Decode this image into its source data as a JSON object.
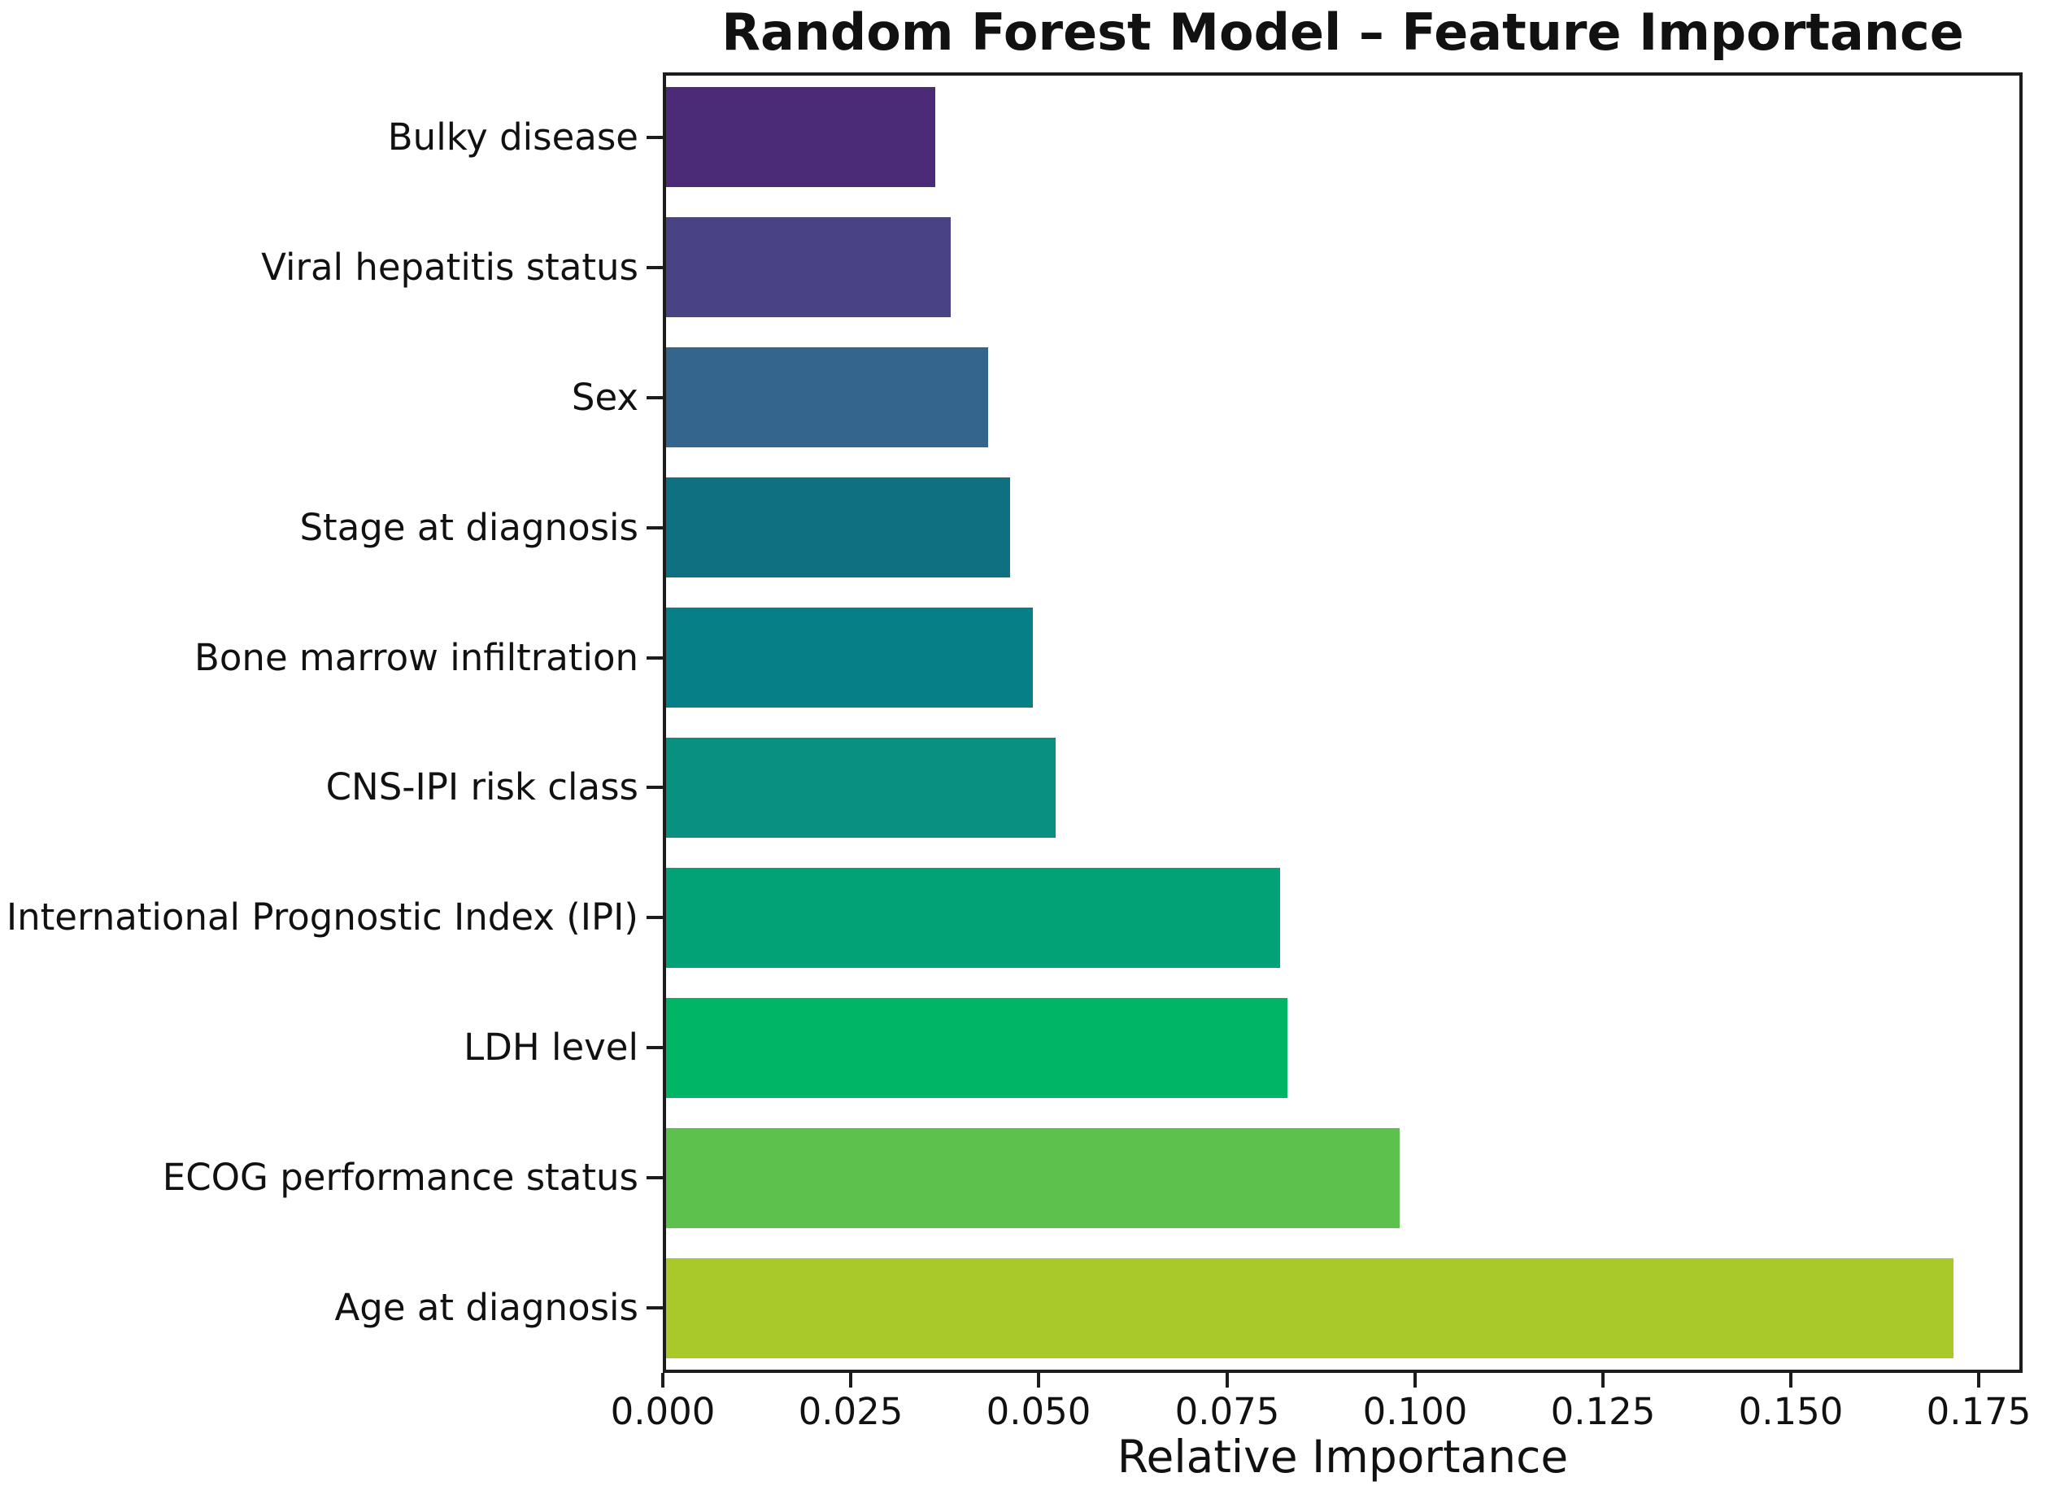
{
  "chart_data": {
    "type": "bar",
    "orientation": "horizontal",
    "title": "Random Forest Model – Feature Importance",
    "xlabel": "Relative Importance",
    "ylabel": "",
    "categories": [
      "Bulky disease",
      "Viral hepatitis status",
      "Sex",
      "Stage at diagnosis",
      "Bone marrow infiltration",
      "CNS-IPI risk class",
      "International Prognostic Index (IPI)",
      "LDH level",
      "ECOG performance status",
      "Age at diagnosis"
    ],
    "values": [
      0.036,
      0.038,
      0.043,
      0.046,
      0.049,
      0.052,
      0.082,
      0.083,
      0.098,
      0.172
    ],
    "bar_colors": [
      "#4b2a78",
      "#494386",
      "#33658d",
      "#0f7082",
      "#067f87",
      "#099080",
      "#02a176",
      "#00b566",
      "#5cc14d",
      "#a9c92b"
    ],
    "xlim": [
      0,
      0.1808
    ],
    "xticks": [
      0,
      0.025,
      0.05,
      0.075,
      0.1,
      0.125,
      0.15,
      0.175
    ],
    "xtick_labels": [
      "0.000",
      "0.025",
      "0.050",
      "0.075",
      "0.100",
      "0.125",
      "0.150",
      "0.175"
    ],
    "grid": false,
    "legend": false,
    "background_color": "#ffffff",
    "axis_color": "#1c1c1c",
    "text_color": "#111111"
  }
}
